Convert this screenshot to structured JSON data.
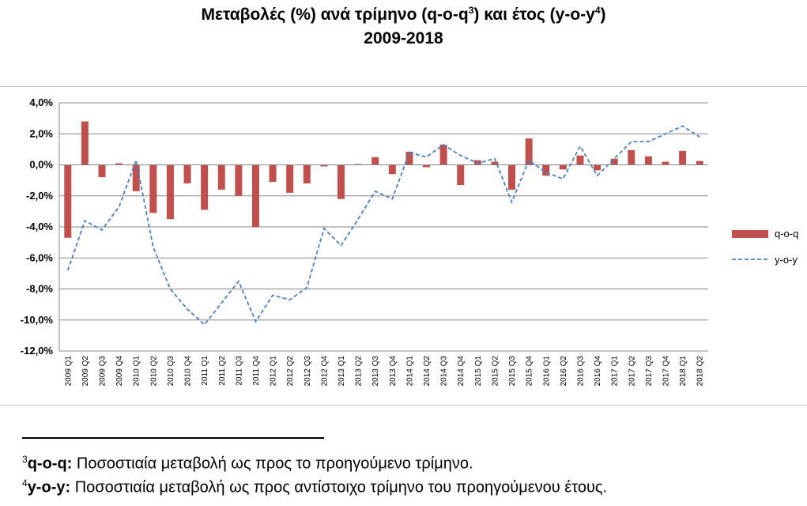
{
  "heading": {
    "line1_main": "Μεταβολές (%) ανά τρίμηνο (q-o-q",
    "line1_fn1": "3",
    "line1_mid": ") και έτος (y-o-y",
    "line1_fn2": "4",
    "line1_end": ")",
    "line2": "2009-2018"
  },
  "chart_data": {
    "type": "bar",
    "title": "Μεταβολές (%) ανά τρίμηνο (q-o-q3) και έτος (y-o-y4) 2009-2018",
    "categories": [
      "2009 Q1",
      "2009 Q2",
      "2009 Q3",
      "2009 Q4",
      "2010 Q1",
      "2010 Q2",
      "2010 Q3",
      "2010 Q4",
      "2011 Q1",
      "2011 Q2",
      "2011 Q3",
      "2011 Q4",
      "2012 Q1",
      "2012 Q2",
      "2012 Q3",
      "2012 Q4",
      "2013 Q1",
      "2013 Q2",
      "2013 Q3",
      "2013 Q4",
      "2014 Q1",
      "2014 Q2",
      "2014 Q3",
      "2014 Q4",
      "2015 Q1",
      "2015 Q2",
      "2015 Q3",
      "2015 Q4",
      "2016 Q1",
      "2016 Q2",
      "2016 Q3",
      "2016 Q4",
      "2017 Q1",
      "2017 Q2",
      "2017 Q3",
      "2017 Q4",
      "2018 Q1",
      "2018 Q2"
    ],
    "series": [
      {
        "name": "q-o-q",
        "kind": "bar",
        "color": "#c0504d",
        "values": [
          -4.7,
          2.8,
          -0.8,
          0.1,
          -1.7,
          -3.1,
          -3.5,
          -1.2,
          -2.9,
          -1.6,
          -2.0,
          -4.0,
          -1.1,
          -1.8,
          -1.2,
          -0.1,
          -2.2,
          0.05,
          0.5,
          -0.6,
          0.85,
          -0.15,
          1.3,
          -1.3,
          0.3,
          0.2,
          -1.6,
          1.7,
          -0.7,
          -0.3,
          0.6,
          -0.35,
          0.4,
          0.95,
          0.55,
          0.2,
          0.9,
          0.25
        ]
      },
      {
        "name": "y-o-y",
        "kind": "line",
        "dash": true,
        "color": "#4f81bd",
        "values": [
          -6.8,
          -3.6,
          -4.2,
          -2.7,
          0.3,
          -5.3,
          -8.0,
          -9.3,
          -10.3,
          -8.9,
          -7.5,
          -10.1,
          -8.4,
          -8.7,
          -7.9,
          -4.1,
          -5.2,
          -3.5,
          -1.7,
          -2.2,
          0.8,
          0.5,
          1.3,
          0.6,
          0.1,
          0.4,
          -2.4,
          0.3,
          -0.5,
          -0.9,
          1.2,
          -0.7,
          0.4,
          1.5,
          1.5,
          2.0,
          2.5,
          1.8
        ]
      }
    ],
    "yticks": [
      "4,0%",
      "2,0%",
      "0,0%",
      "-2,0%",
      "-4,0%",
      "-6,0%",
      "-8,0%",
      "-10,0%",
      "-12,0%"
    ],
    "ylim": [
      -12,
      4
    ],
    "grid": true,
    "legend_position": "right"
  },
  "footnotes": [
    {
      "mark": "3",
      "term": "q-o-q:",
      "text": " Ποσοστιαία μεταβολή ως προς το προηγούμενο τρίμηνο."
    },
    {
      "mark": "4",
      "term": "y-o-y:",
      "text": " Ποσοστιαία μεταβολή ως προς αντίστοιχο τρίμηνο του προηγούμενου έτους."
    }
  ]
}
